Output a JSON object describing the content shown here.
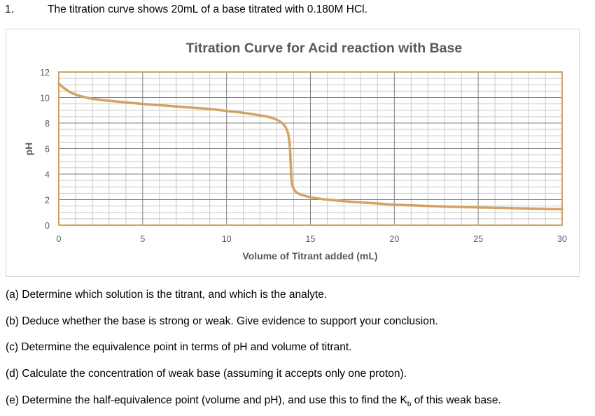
{
  "question": {
    "number": "1.",
    "stem": "The titration curve shows 20mL of a base titrated with 0.180M HCl."
  },
  "sub_questions": [
    {
      "label": "(a)",
      "text": "(a) Determine which solution is the titrant, and which is the analyte."
    },
    {
      "label": "(b)",
      "text": "(b) Deduce whether the base is strong or weak. Give evidence to support your conclusion."
    },
    {
      "label": "(c)",
      "text": "(c) Determine the equivalence point in terms of pH and volume of titrant."
    },
    {
      "label": "(d)",
      "text": "(d) Calculate the concentration of weak base (assuming it accepts only one proton)."
    },
    {
      "label": "(e)",
      "text_before": "(e) Determine the half-equivalence point (volume and pH), and use this to find the K",
      "subscript": "b",
      "text_after": " of this weak base."
    }
  ],
  "chart_data": {
    "type": "line",
    "title": "Titration Curve for Acid reaction with Base",
    "xlabel": "Volume of Titrant added (mL)",
    "ylabel": "pH",
    "xlim": [
      0,
      30
    ],
    "ylim": [
      0,
      12
    ],
    "x_ticks": [
      0,
      5,
      10,
      15,
      20,
      25,
      30
    ],
    "y_ticks": [
      0,
      2,
      4,
      6,
      8,
      10,
      12
    ],
    "x_minor_step": 1,
    "y_minor_step": 0.5,
    "grid": true,
    "legend": null,
    "series": [
      {
        "name": "pH",
        "color": "#D4A265",
        "x": [
          0,
          0.3,
          0.7,
          1.2,
          2,
          3,
          4,
          5,
          6,
          7,
          8,
          9,
          10,
          11,
          12,
          12.6,
          13.0,
          13.3,
          13.55,
          13.7,
          13.78,
          13.82,
          13.85,
          13.88,
          13.95,
          14.1,
          14.4,
          14.8,
          15.3,
          16,
          17,
          18,
          19,
          20,
          22,
          24,
          26,
          28,
          30
        ],
        "y": [
          11.1,
          10.75,
          10.4,
          10.15,
          9.9,
          9.75,
          9.62,
          9.5,
          9.4,
          9.3,
          9.2,
          9.1,
          8.95,
          8.8,
          8.6,
          8.45,
          8.25,
          8.0,
          7.6,
          7.0,
          6.0,
          5.0,
          4.0,
          3.4,
          3.0,
          2.65,
          2.4,
          2.25,
          2.12,
          2.0,
          1.88,
          1.78,
          1.7,
          1.6,
          1.5,
          1.42,
          1.36,
          1.3,
          1.25
        ]
      }
    ]
  },
  "colors": {
    "curve": "#D4A265",
    "plot_border": "#D4A265",
    "major_grid": "#7f7f7f",
    "minor_grid": "#c8c8c8",
    "title_text": "#595959",
    "tick_text": "#595959",
    "frame_border": "#d9d9d9"
  }
}
